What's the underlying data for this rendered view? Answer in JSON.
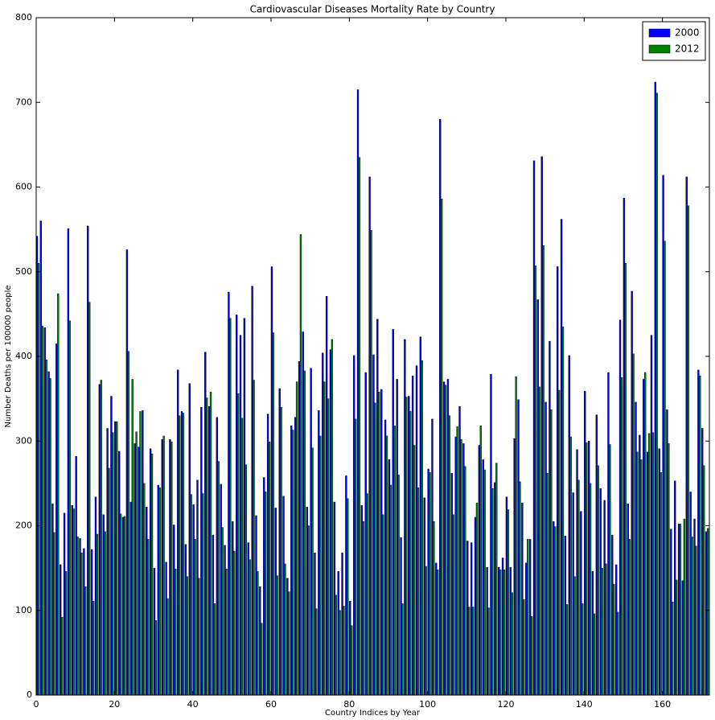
{
  "chart_data": {
    "type": "bar",
    "title": "Cardiovascular Diseases Mortality Rate by Country",
    "xlabel": "Country Indices by Year",
    "ylabel": "Number Deaths per 100000 people",
    "x": [
      0,
      1,
      2,
      3,
      4,
      5,
      6,
      7,
      8,
      9,
      10,
      11,
      12,
      13,
      14,
      15,
      16,
      17,
      18,
      19,
      20,
      21,
      22,
      23,
      24,
      25,
      26,
      27,
      28,
      29,
      30,
      31,
      32,
      33,
      34,
      35,
      36,
      37,
      38,
      39,
      40,
      41,
      42,
      43,
      44,
      45,
      46,
      47,
      48,
      49,
      50,
      51,
      52,
      53,
      54,
      55,
      56,
      57,
      58,
      59,
      60,
      61,
      62,
      63,
      64,
      65,
      66,
      67,
      68,
      69,
      70,
      71,
      72,
      73,
      74,
      75,
      76,
      77,
      78,
      79,
      80,
      81,
      82,
      83,
      84,
      85,
      86,
      87,
      88,
      89,
      90,
      91,
      92,
      93,
      94,
      95,
      96,
      97,
      98,
      99,
      100,
      101,
      102,
      103,
      104,
      105,
      106,
      107,
      108,
      109,
      110,
      111,
      112,
      113,
      114,
      115,
      116,
      117,
      118,
      119,
      120,
      121,
      122,
      123,
      124,
      125,
      126,
      127,
      128,
      129,
      130,
      131,
      132,
      133,
      134,
      135,
      136,
      137,
      138,
      139,
      140,
      141,
      142,
      143,
      144,
      145,
      146,
      147,
      148,
      149,
      150,
      151,
      152,
      153,
      154,
      155,
      156,
      157,
      158,
      159,
      160,
      161,
      162,
      163,
      164,
      165,
      166,
      167,
      168,
      169,
      170,
      171
    ],
    "bar_width": 0.4,
    "series": [
      {
        "name": "2000",
        "color": "#0000ff",
        "values": [
          542,
          560,
          434,
          382,
          226,
          415,
          154,
          215,
          551,
          224,
          282,
          185,
          173,
          554,
          172,
          234,
          367,
          213,
          315,
          353,
          323,
          288,
          210,
          526,
          228,
          297,
          293,
          336,
          222,
          291,
          150,
          248,
          302,
          157,
          302,
          201,
          384,
          335,
          178,
          368,
          225,
          254,
          340,
          405,
          341,
          189,
          328,
          249,
          177,
          476,
          205,
          449,
          425,
          445,
          180,
          483,
          212,
          128,
          257,
          332,
          506,
          221,
          362,
          235,
          138,
          318,
          328,
          394,
          429,
          222,
          386,
          168,
          336,
          404,
          471,
          408,
          228,
          146,
          168,
          259,
          111,
          401,
          715,
          224,
          381,
          612,
          402,
          444,
          361,
          325,
          278,
          432,
          373,
          186,
          420,
          353,
          377,
          389,
          423,
          233,
          267,
          326,
          156,
          680,
          370,
          373,
          262,
          305,
          341,
          297,
          182,
          180,
          210,
          295,
          278,
          151,
          379,
          251,
          151,
          162,
          234,
          151,
          303,
          349,
          227,
          156,
          184,
          631,
          467,
          636,
          346,
          418,
          205,
          506,
          562,
          188,
          401,
          239,
          290,
          217,
          359,
          300,
          146,
          331,
          244,
          230,
          381,
          189,
          154,
          443,
          587,
          226,
          477,
          346,
          307,
          373,
          287,
          425,
          724,
          291,
          614,
          337,
          196,
          253,
          202,
          135,
          612,
          240,
          208,
          384,
          315,
          193
        ]
      },
      {
        "name": "2012",
        "color": "#008000",
        "values": [
          510,
          436,
          396,
          374,
          192,
          474,
          92,
          146,
          442,
          220,
          187,
          168,
          128,
          464,
          111,
          190,
          372,
          193,
          268,
          310,
          323,
          214,
          211,
          406,
          373,
          311,
          335,
          250,
          184,
          285,
          88,
          245,
          306,
          114,
          299,
          149,
          330,
          333,
          140,
          237,
          184,
          138,
          238,
          351,
          358,
          108,
          276,
          198,
          149,
          445,
          170,
          356,
          327,
          272,
          160,
          372,
          146,
          85,
          240,
          299,
          428,
          141,
          340,
          155,
          122,
          313,
          370,
          544,
          383,
          200,
          292,
          102,
          306,
          370,
          350,
          420,
          118,
          100,
          105,
          232,
          82,
          326,
          635,
          205,
          238,
          549,
          345,
          358,
          213,
          306,
          248,
          318,
          260,
          108,
          352,
          335,
          295,
          245,
          395,
          152,
          263,
          205,
          148,
          586,
          366,
          330,
          213,
          317,
          302,
          270,
          104,
          104,
          227,
          318,
          266,
          103,
          244,
          274,
          148,
          148,
          219,
          121,
          376,
          252,
          113,
          184,
          93,
          507,
          364,
          531,
          262,
          337,
          199,
          360,
          435,
          107,
          305,
          140,
          254,
          108,
          298,
          250,
          96,
          271,
          150,
          155,
          296,
          131,
          98,
          375,
          510,
          184,
          403,
          287,
          278,
          381,
          309,
          310,
          711,
          263,
          536,
          297,
          110,
          136,
          202,
          208,
          578,
          187,
          176,
          377,
          271,
          197
        ]
      }
    ],
    "xlim": [
      0,
      172
    ],
    "ylim": [
      0,
      800
    ],
    "xticks": [
      0,
      20,
      40,
      60,
      80,
      100,
      120,
      140,
      160
    ],
    "yticks": [
      0,
      100,
      200,
      300,
      400,
      500,
      600,
      700,
      800
    ],
    "legend": "upper right"
  }
}
